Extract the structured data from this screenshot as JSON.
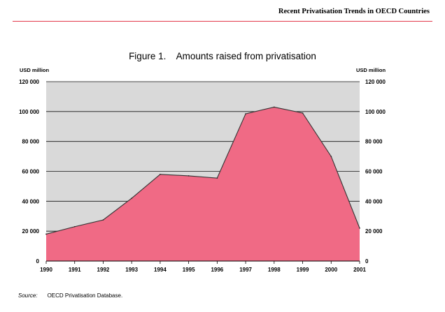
{
  "header": {
    "title": "Recent Privatisation Trends in OECD Countries",
    "rule_color": "#e23a4b"
  },
  "figure": {
    "title": "Figure 1.    Amounts raised from privatisation"
  },
  "source": {
    "label": "Source:",
    "text": "OECD Privatisation Database."
  },
  "chart_data": {
    "type": "area",
    "title": "Amounts raised from privatisation",
    "ylabel": "USD million",
    "ylabel_right": "USD million",
    "x": [
      1990,
      1991,
      1992,
      1993,
      1994,
      1995,
      1996,
      1997,
      1998,
      1999,
      2000,
      2001
    ],
    "y_tick_labels": [
      "0",
      "20 000",
      "40 000",
      "60 000",
      "80 000",
      "100 000",
      "120 000"
    ],
    "y_ticks": [
      0,
      20000,
      40000,
      60000,
      80000,
      100000,
      120000
    ],
    "ylim": [
      0,
      120000
    ],
    "series": [
      {
        "values": [
          18000,
          23000,
          27500,
          42000,
          58000,
          57000,
          55500,
          98500,
          103000,
          99000,
          70000,
          22000
        ],
        "color": "#f06a85"
      }
    ],
    "plot_background": "#d9d9d9",
    "grid": true,
    "legend": "none"
  }
}
